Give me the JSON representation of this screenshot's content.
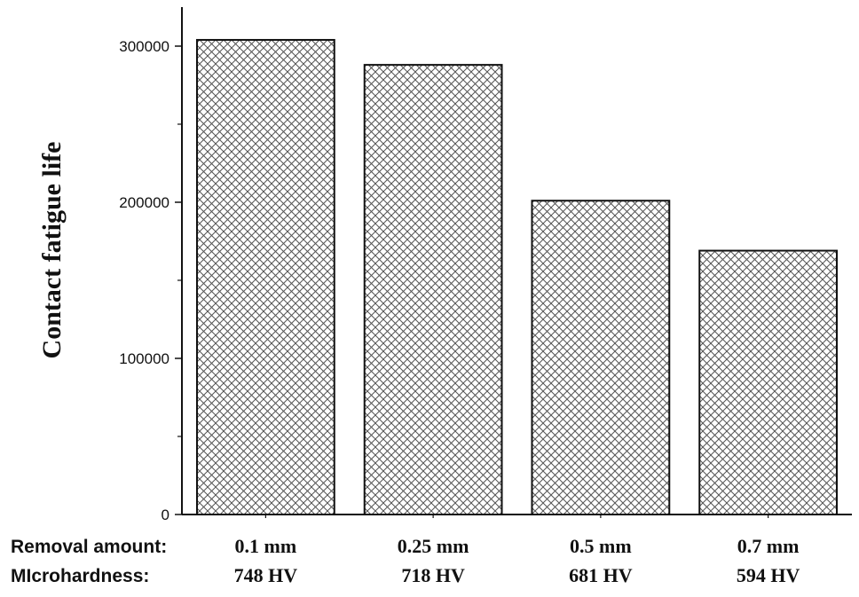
{
  "chart_data": {
    "type": "bar",
    "categories": [
      "0.1 mm",
      "0.25 mm",
      "0.5 mm",
      "0.7 mm"
    ],
    "secondary_categories": [
      "748 HV",
      "718 HV",
      "681 HV",
      "594 HV"
    ],
    "row_labels": [
      "Removal amount:",
      "MIcrohardness:"
    ],
    "values": [
      304000,
      288000,
      201000,
      169000
    ],
    "title": "",
    "xlabel": "",
    "ylabel": "Contact fatigue life",
    "ylim": [
      0,
      325000
    ],
    "yticks": [
      0,
      100000,
      200000,
      300000
    ],
    "ytick_labels": [
      "0",
      "100000",
      "200000",
      "300000"
    ],
    "bar_fill": "cross-hatch",
    "bar_color": "#ffffff",
    "hatch_color": "#555555",
    "grid": false,
    "legend": "none"
  }
}
